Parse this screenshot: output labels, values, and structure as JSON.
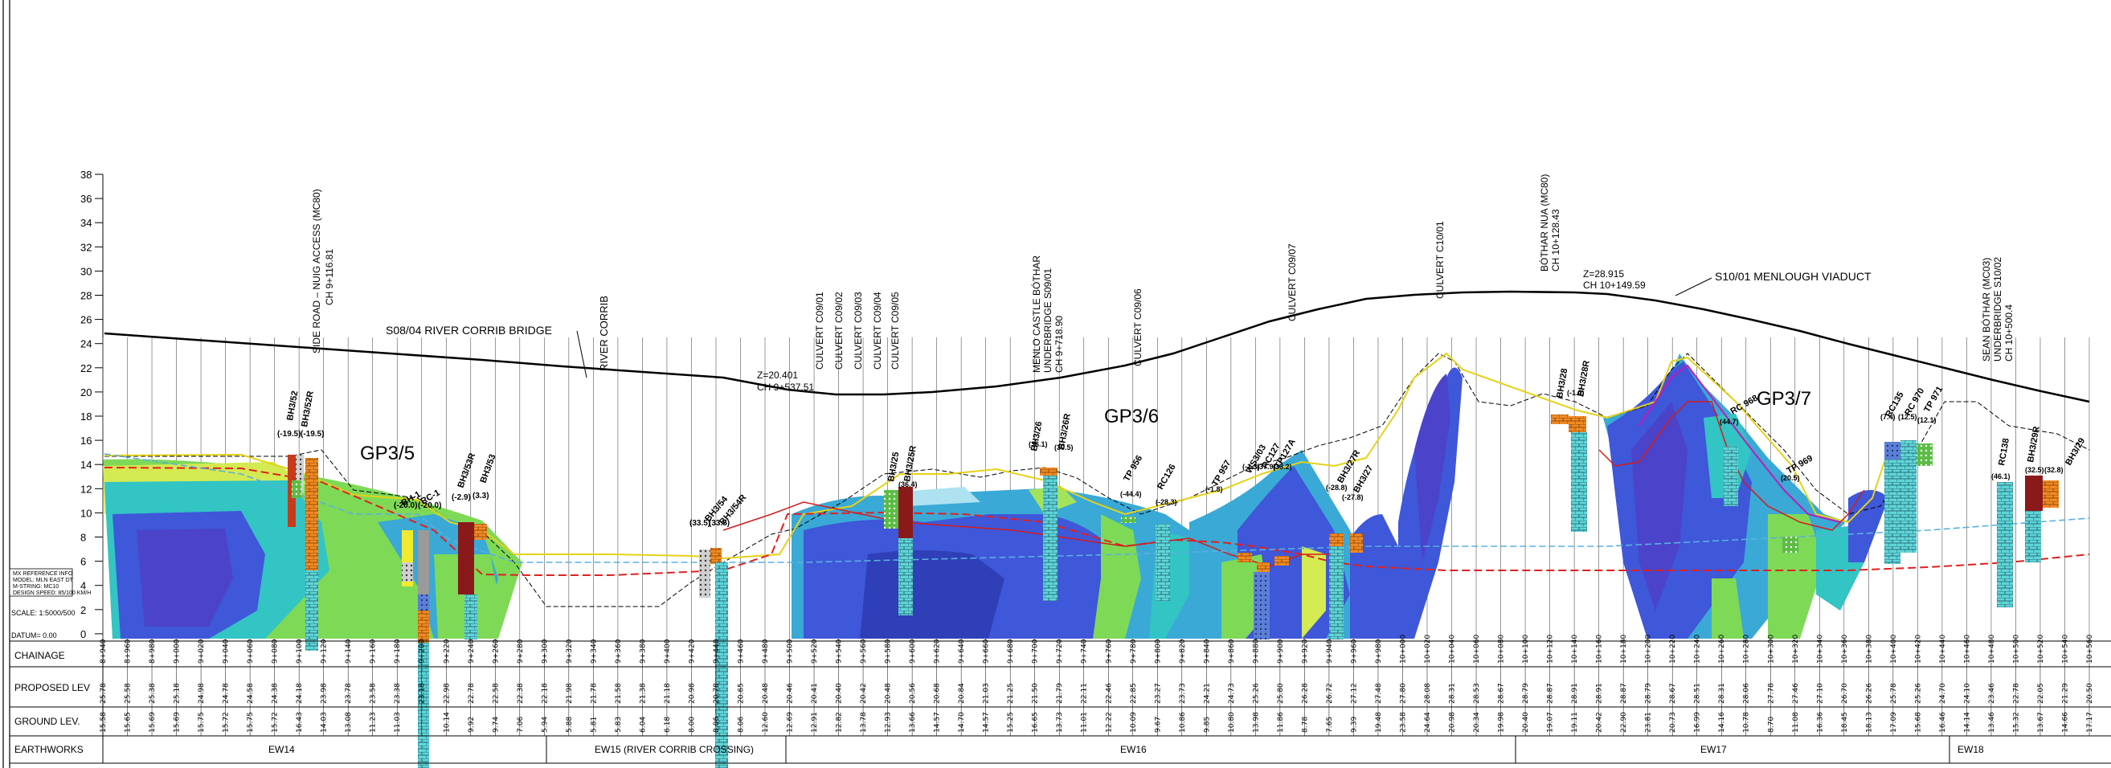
{
  "y_axis": {
    "ticks": [
      "38",
      "36",
      "34",
      "32",
      "30",
      "28",
      "26",
      "24",
      "22",
      "20",
      "18",
      "16",
      "14",
      "12",
      "10",
      "8",
      "6",
      "4",
      "2",
      "0"
    ]
  },
  "structures": {
    "bridge": "S08/04 RIVER CORRIB BRIDGE",
    "river": "RIVER CORRIB",
    "side_road": [
      "SIDE ROAD – NUIG ACCESS (MC80)",
      "CH 9+116.81"
    ],
    "crest1": [
      "Z=20.401",
      "CH 9+537.51"
    ],
    "culverts": [
      "CULVERT C09/01",
      "CULVERT C09/02",
      "CULVERT C09/03",
      "CULVERT C09/04",
      "CULVERT C09/05"
    ],
    "menlo": [
      "MENLO CASTLE BÓTHAR",
      "UNDERBRIDGE S09/01",
      "CH 9+718.90"
    ],
    "culvert_c0906": "CULVERT C09/06",
    "culvert_c0907": "CULVERT C09/07",
    "culvert_c1001": "CULVERT C10/01",
    "bothar_nua": [
      "BÓTHAR NUA (MC80)",
      "CH 10+128.43"
    ],
    "crest2": [
      "Z=28.915",
      "CH 10+149.59"
    ],
    "viaduct": "S10/01 MENLOUGH VIADUCT",
    "sean_bothar": [
      "SEAN BÓTHAR (MC03)",
      "UNDERBRIDGE S10/02",
      "CH 10+500.4"
    ]
  },
  "zones": [
    "GP3/5",
    "GP3/6",
    "GP3/7"
  ],
  "boreholes": [
    "BH3/52",
    "BH3/52R",
    "(-19.5)",
    "(-19.5)",
    "BH-1",
    "RC-1",
    "(-20.0)",
    "(-20.0)",
    "BH3/53R",
    "BH3/53",
    "(-2.9)",
    "(3.3)",
    "BH3/54",
    "BH3/54R",
    "(33.5)",
    "(33.5)",
    "BH3/25",
    "BH3/25R",
    "(36.4)",
    "BH3/26",
    "BH3/26R",
    "(36.1)",
    "(30.5)",
    "TP 956",
    "(-44.4)",
    "RC126",
    "(-28.3)",
    "TP 957",
    "(-1.8)",
    "WS3/03",
    "RC127",
    "TP127A",
    "(-1.3)",
    "(37.9)",
    "(33.2)",
    "BH3/27R",
    "BH3/27",
    "(-28.8)",
    "(-27.8)",
    "BH3/28",
    "BH3/28R",
    "(-1.0)",
    "RC 968",
    "(44.7)",
    "TP 969",
    "(20.5)",
    "RC135",
    "RC 970",
    "TP 971",
    "(7.4)",
    "(12.5)",
    "(12.1)",
    "RC138",
    "(46.1)",
    "BH3/29R",
    "BH3/29",
    "(32.5)",
    "(32.8)"
  ],
  "model_info": [
    "MX REFERENCE INFO",
    "MODEL: MLN EAST DT",
    "M-STRING: MC10",
    "DESIGN SPEED: 85/100 KM/H"
  ],
  "scale": "SCALE: 1:5000/500",
  "datum": "DATUM= 0.00",
  "table": {
    "row_labels": [
      "CHAINAGE",
      "PROPOSED LEV",
      "GROUND LEV.",
      "EARTHWORKS"
    ],
    "chainage": [
      "8+940",
      "8+960",
      "8+980",
      "9+000",
      "9+020",
      "9+040",
      "9+060",
      "9+080",
      "9+100",
      "9+120",
      "9+140",
      "9+160",
      "9+180",
      "9+200",
      "9+220",
      "9+240",
      "9+260",
      "9+280",
      "9+300",
      "9+320",
      "9+340",
      "9+360",
      "9+380",
      "9+400",
      "9+420",
      "9+440",
      "9+460",
      "9+480",
      "9+500",
      "9+520",
      "9+540",
      "9+560",
      "9+580",
      "9+600",
      "9+620",
      "9+640",
      "9+660",
      "9+680",
      "9+700",
      "9+720",
      "9+740",
      "9+760",
      "9+780",
      "9+800",
      "9+820",
      "9+840",
      "9+860",
      "9+880",
      "9+900",
      "9+920",
      "9+940",
      "9+960",
      "9+980",
      "10+000",
      "10+020",
      "10+040",
      "10+060",
      "10+080",
      "10+100",
      "10+120",
      "10+140",
      "10+160",
      "10+180",
      "10+200",
      "10+220",
      "10+240",
      "10+260",
      "10+280",
      "10+300",
      "10+320",
      "10+340",
      "10+360",
      "10+380",
      "10+400",
      "10+420",
      "10+440",
      "10+460",
      "10+480",
      "10+500",
      "10+520",
      "10+540",
      "10+560"
    ],
    "proposed": [
      "25.78",
      "25.58",
      "25.38",
      "25.18",
      "24.98",
      "24.78",
      "24.58",
      "24.38",
      "24.18",
      "23.98",
      "23.78",
      "23.58",
      "23.38",
      "23.18",
      "22.98",
      "22.78",
      "22.58",
      "22.38",
      "22.18",
      "21.98",
      "21.78",
      "21.58",
      "21.38",
      "21.18",
      "20.98",
      "20.78",
      "20.65",
      "20.48",
      "20.46",
      "20.41",
      "20.40",
      "20.42",
      "20.48",
      "20.56",
      "20.68",
      "20.84",
      "21.03",
      "21.25",
      "21.50",
      "21.79",
      "22.11",
      "22.46",
      "22.85",
      "23.27",
      "23.73",
      "24.21",
      "24.73",
      "25.26",
      "25.80",
      "26.28",
      "26.72",
      "27.12",
      "27.48",
      "27.80",
      "28.08",
      "28.31",
      "28.53",
      "28.67",
      "28.79",
      "28.87",
      "28.91",
      "28.91",
      "28.87",
      "28.79",
      "28.67",
      "28.51",
      "28.31",
      "28.06",
      "27.78",
      "27.46",
      "27.10",
      "26.70",
      "26.26",
      "25.78",
      "25.26",
      "24.70",
      "24.10",
      "23.46",
      "22.78",
      "22.05",
      "21.29",
      "20.50"
    ],
    "ground": [
      "15.58",
      "15.65",
      "15.69",
      "15.69",
      "15.75",
      "15.72",
      "15.75",
      "15.72",
      "16.43",
      "14.03",
      "13.08",
      "11.23",
      "11.03",
      "",
      "10.14",
      "9.92",
      "9.74",
      "7.06",
      "5.94",
      "5.88",
      "5.81",
      "5.83",
      "6.04",
      "6.18",
      "8.00",
      "8.06",
      "8.06",
      "12.60",
      "12.69",
      "12.91",
      "12.82",
      "13.78",
      "12.93",
      "13.66",
      "14.57",
      "14.70",
      "14.57",
      "15.25",
      "16.65",
      "13.73",
      "11.01",
      "12.22",
      "10.09",
      "9.67",
      "10.86",
      "9.85",
      "10.80",
      "13.98",
      "11.86",
      "8.78",
      "7.65",
      "9.39",
      "19.48",
      "23.58",
      "24.64",
      "20.98",
      "20.34",
      "19.98",
      "20.40",
      "19.07",
      "19.11",
      "20.42",
      "22.90",
      "23.81",
      "20.73",
      "16.99",
      "14.16",
      "10.78",
      "8.70",
      "11.08",
      "16.36",
      "18.45",
      "18.13",
      "17.09",
      "15.68",
      "16.46",
      "14.14",
      "13.46",
      "15.32",
      "13.67",
      "14.66",
      "17.17"
    ],
    "earthworks": [
      "EW14",
      "EW15    (RIVER CORRIB CROSSING)",
      "EW16",
      "EW17",
      "EW18"
    ]
  }
}
